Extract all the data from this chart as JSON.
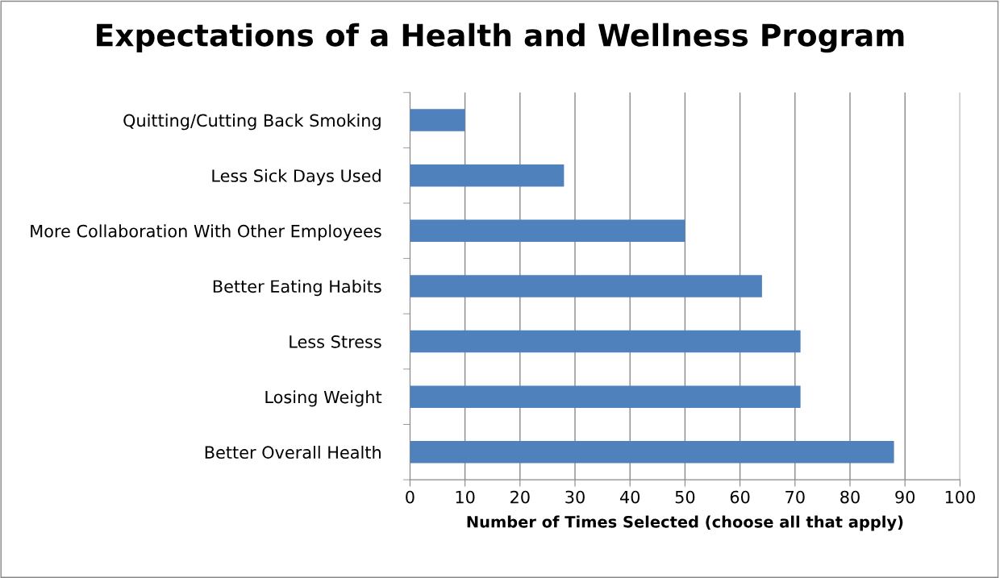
{
  "chart_data": {
    "type": "bar",
    "orientation": "horizontal",
    "title": "Expectations of a Health and Wellness Program",
    "xlabel": "Number of Times Selected (choose all that apply)",
    "categories": [
      "Quitting/Cutting Back Smoking",
      "Less Sick Days Used",
      "More Collaboration With Other Employees",
      "Better Eating Habits",
      "Less Stress",
      "Losing Weight",
      "Better Overall Health"
    ],
    "values": [
      10,
      28,
      50,
      64,
      71,
      71,
      88
    ],
    "color": "#4f81bd",
    "xlim": [
      0,
      100
    ],
    "xticks": [
      0,
      10,
      20,
      30,
      40,
      50,
      60,
      70,
      80,
      90,
      100
    ],
    "grid": "x",
    "legend": false
  }
}
